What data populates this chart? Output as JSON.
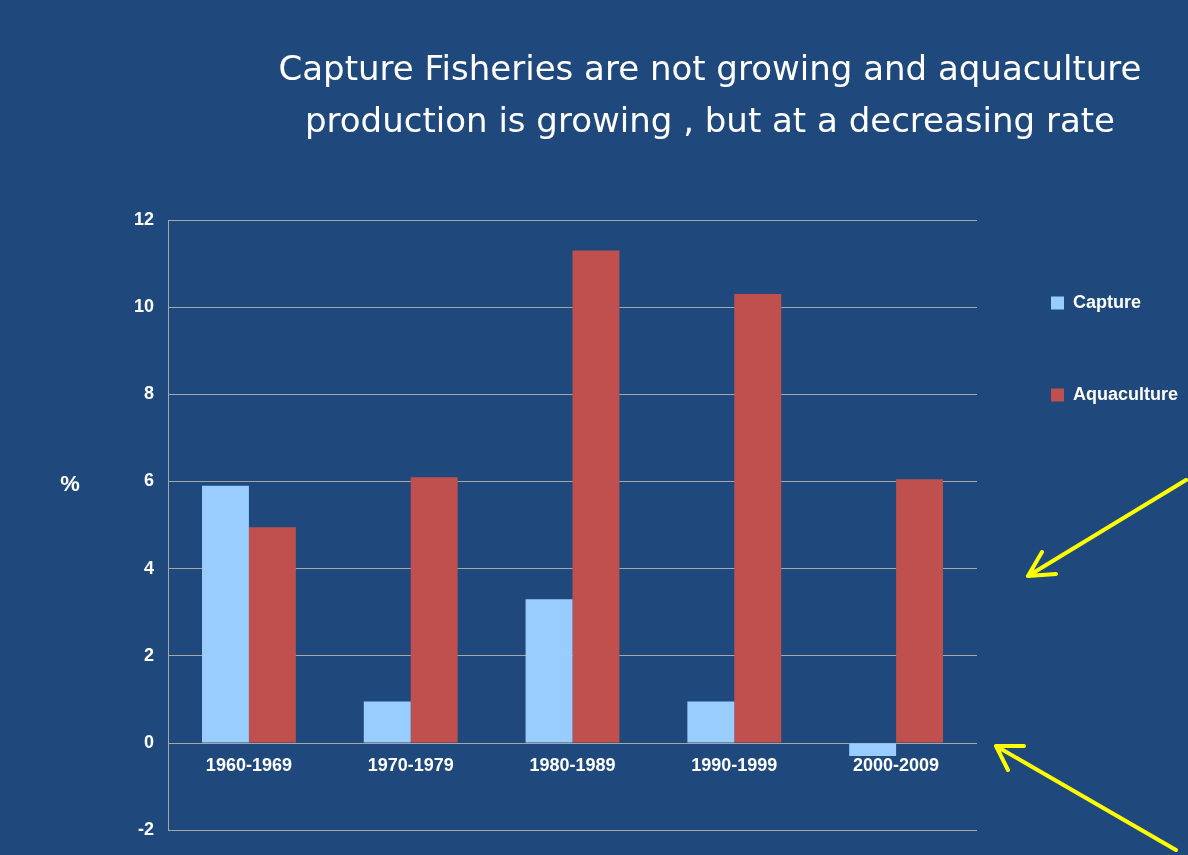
{
  "chart_data": {
    "type": "bar",
    "title": "Capture Fisheries are not growing and aquaculture production is growing , but at a decreasing rate",
    "ylabel": "%",
    "categories": [
      "1960-1969",
      "1970-1979",
      "1980-1989",
      "1990-1999",
      "2000-2009"
    ],
    "series": [
      {
        "name": "Capture",
        "color": "#99ccff",
        "values": [
          5.9,
          0.95,
          3.3,
          0.95,
          -0.3
        ]
      },
      {
        "name": "Aquaculture",
        "color": "#c0504d",
        "values": [
          4.95,
          6.1,
          11.3,
          10.3,
          6.05
        ]
      }
    ],
    "ylim": [
      -2,
      12
    ],
    "yticks": [
      -2,
      0,
      2,
      4,
      6,
      8,
      10,
      12
    ],
    "grid": "y",
    "legend": "top right"
  }
}
